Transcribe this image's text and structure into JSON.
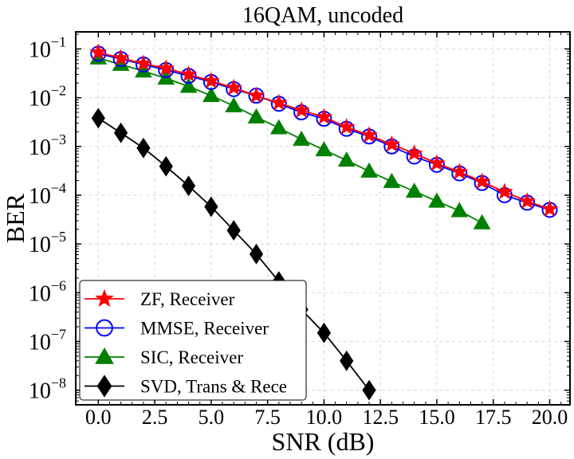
{
  "chart_data": {
    "type": "line",
    "title": "16QAM, uncoded",
    "xlabel": "SNR (dB)",
    "ylabel": "BER",
    "xlim": [
      -1,
      20.9
    ],
    "ylim_log10": [
      -8.3,
      -0.65
    ],
    "yscale": "log",
    "grid": true,
    "legend_position": "bottom-left",
    "x_ticks": [
      0,
      2.5,
      5,
      7.5,
      10,
      12.5,
      15,
      17.5,
      20
    ],
    "x_tick_labels": [
      "0.0",
      "2.5",
      "5.0",
      "7.5",
      "10.0",
      "12.5",
      "15.0",
      "17.5",
      "20.0"
    ],
    "y_tick_exponents": [
      -1,
      -2,
      -3,
      -4,
      -5,
      -6,
      -7,
      -8
    ],
    "y_tick_base": "10",
    "series": [
      {
        "name": "ZF, Receiver",
        "color": "#ff0000",
        "marker": "star",
        "x": [
          0,
          1,
          2,
          3,
          4,
          5,
          6,
          7,
          8,
          9,
          10,
          11,
          12,
          13,
          14,
          15,
          16,
          17,
          18,
          19,
          20
        ],
        "y": [
          0.085,
          0.065,
          0.05,
          0.04,
          0.03,
          0.022,
          0.016,
          0.011,
          0.0078,
          0.0055,
          0.004,
          0.0025,
          0.0017,
          0.0011,
          0.00072,
          0.00045,
          0.0003,
          0.00019,
          0.000117,
          7.5e-05,
          5.2e-05
        ]
      },
      {
        "name": "MMSE, Receiver",
        "color": "#0000ff",
        "marker": "circle",
        "x": [
          0,
          1,
          2,
          3,
          4,
          5,
          6,
          7,
          8,
          9,
          10,
          11,
          12,
          13,
          14,
          15,
          16,
          17,
          18,
          19,
          20
        ],
        "y": [
          0.08,
          0.062,
          0.048,
          0.037,
          0.028,
          0.021,
          0.015,
          0.011,
          0.0075,
          0.005,
          0.0037,
          0.0023,
          0.0016,
          0.001,
          0.00062,
          0.00042,
          0.00028,
          0.000178,
          0.0001,
          7e-05,
          5e-05
        ]
      },
      {
        "name": "SIC, Receiver",
        "color": "#008000",
        "marker": "triangle",
        "x": [
          0,
          1,
          2,
          3,
          4,
          5,
          6,
          7,
          8,
          9,
          10,
          11,
          12,
          13,
          14,
          15,
          16,
          17
        ],
        "y": [
          0.065,
          0.048,
          0.035,
          0.025,
          0.017,
          0.011,
          0.0068,
          0.004,
          0.0024,
          0.0014,
          0.00085,
          0.00052,
          0.00031,
          0.00019,
          0.00012,
          7.5e-05,
          4.8e-05,
          2.7e-05
        ]
      },
      {
        "name": "SVD, Trans & Rece",
        "color": "#000000",
        "marker": "diamond",
        "x": [
          0,
          1,
          2,
          3,
          4,
          5,
          6,
          7,
          8,
          9,
          10,
          11,
          12
        ],
        "y": [
          0.0038,
          0.0019,
          0.00093,
          0.00039,
          0.000155,
          5.8e-05,
          1.9e-05,
          6.2e-06,
          1.7e-06,
          4.5e-07,
          1.5e-07,
          4e-08,
          1e-08
        ]
      }
    ]
  }
}
